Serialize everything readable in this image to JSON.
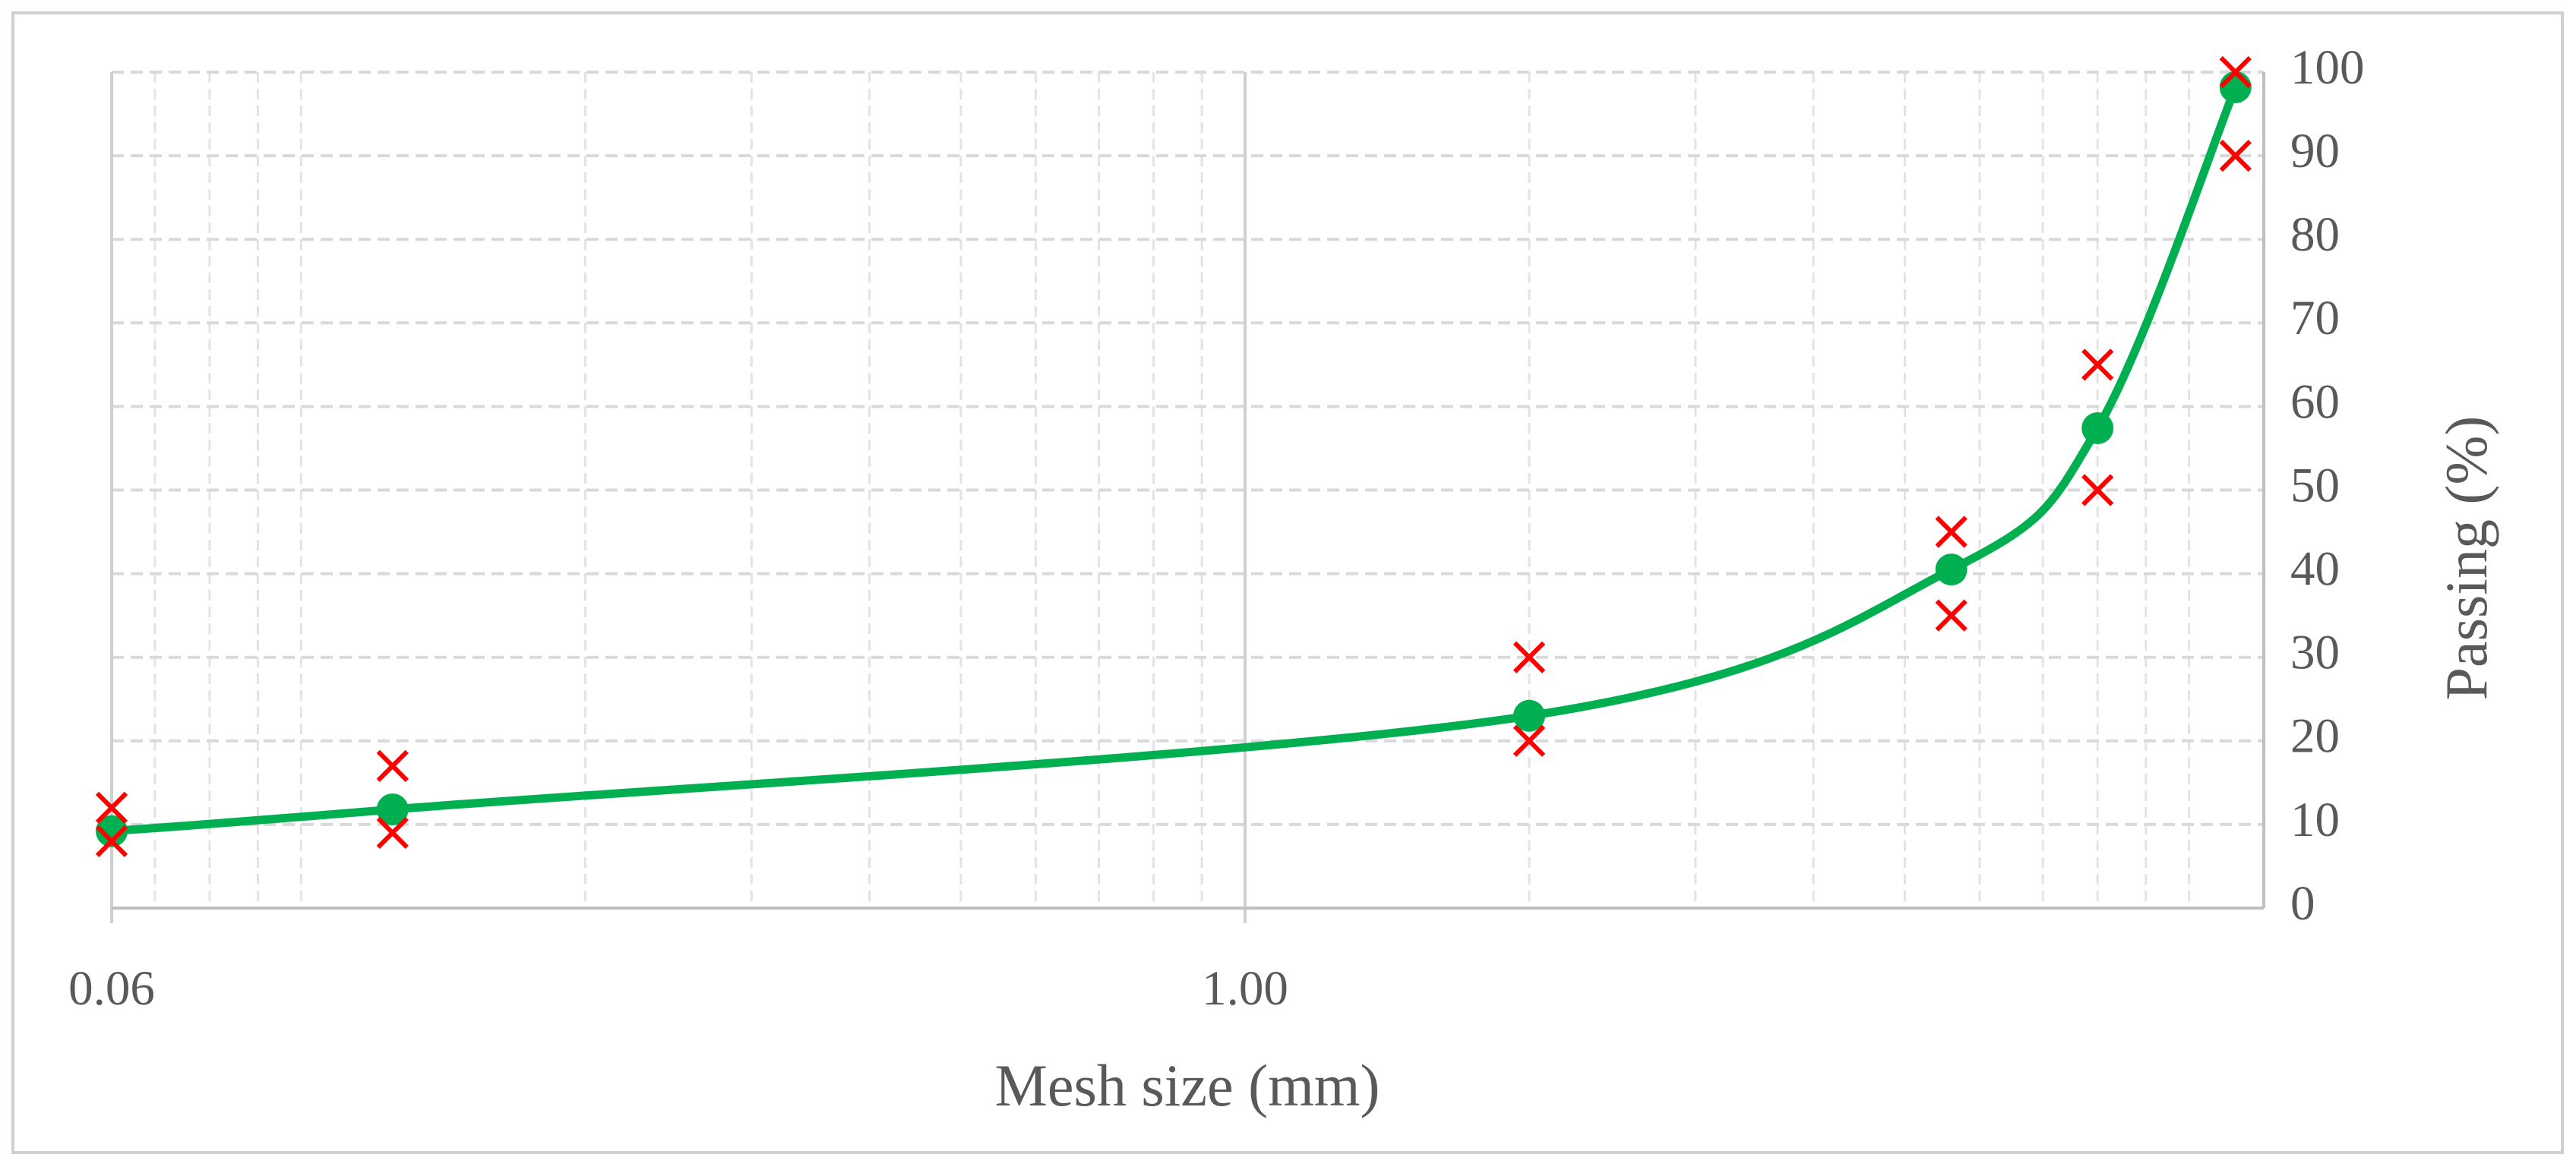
{
  "chart_data": {
    "type": "line",
    "xlabel": "Mesh size (mm)",
    "ylabel": "Passing (%)",
    "x": [
      0.063,
      0.125,
      2,
      5.6,
      8,
      11.2
    ],
    "series": [
      {
        "color": "#00b050",
        "marker": "circle",
        "line": true,
        "smooth": true,
        "values": [
          9.2,
          11.8,
          23,
          40.5,
          57.4,
          98.2
        ]
      },
      {
        "color": "#ff0000",
        "marker": "x",
        "line": false,
        "values": [
          12,
          17,
          30,
          45,
          65,
          100
        ]
      },
      {
        "color": "#ff0000",
        "marker": "x",
        "line": false,
        "values": [
          8,
          9,
          20,
          35,
          50,
          90
        ]
      }
    ],
    "xscale": "log",
    "xlim": [
      0.063,
      12
    ],
    "xticks": [
      {
        "value": 0.063,
        "label": "0.06"
      },
      {
        "value": 1,
        "label": "1.00"
      }
    ],
    "ylim": [
      0,
      100
    ],
    "yticks": [
      0,
      10,
      20,
      30,
      40,
      50,
      60,
      70,
      80,
      90,
      100
    ],
    "y_axis_side": "right",
    "grid": true,
    "minor_grid": true
  }
}
